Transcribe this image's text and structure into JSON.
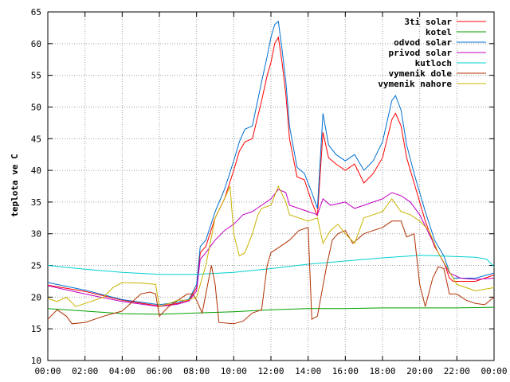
{
  "chart_data": {
    "type": "line",
    "title": "",
    "xlabel": "",
    "ylabel": "teplota ve C",
    "xlim": [
      0,
      24
    ],
    "ylim": [
      10,
      65
    ],
    "x_ticks": [
      "00:00",
      "02:00",
      "04:00",
      "06:00",
      "08:00",
      "10:00",
      "12:00",
      "14:00",
      "16:00",
      "18:00",
      "20:00",
      "22:00",
      "00:00"
    ],
    "y_ticks": [
      10,
      15,
      20,
      25,
      30,
      35,
      40,
      45,
      50,
      55,
      60,
      65
    ],
    "grid": true,
    "legend_position": "top-right",
    "series": [
      {
        "name": "3ti solar",
        "color": "#ff0000",
        "points": [
          [
            0,
            21.9
          ],
          [
            2,
            20.9
          ],
          [
            4,
            19.5
          ],
          [
            6,
            18.6
          ],
          [
            7,
            19.0
          ],
          [
            7.6,
            19.5
          ],
          [
            8.0,
            21.5
          ],
          [
            8.2,
            27.0
          ],
          [
            8.5,
            28.0
          ],
          [
            9.0,
            32.5
          ],
          [
            9.5,
            35.5
          ],
          [
            10,
            40.0
          ],
          [
            10.3,
            43.0
          ],
          [
            10.6,
            44.5
          ],
          [
            11.0,
            45.0
          ],
          [
            11.5,
            51.0
          ],
          [
            11.8,
            55.0
          ],
          [
            12.0,
            57.0
          ],
          [
            12.2,
            60.0
          ],
          [
            12.4,
            61.0
          ],
          [
            12.6,
            57.0
          ],
          [
            12.8,
            52.0
          ],
          [
            13.0,
            45.0
          ],
          [
            13.4,
            39.0
          ],
          [
            13.8,
            38.5
          ],
          [
            14.2,
            35.0
          ],
          [
            14.5,
            32.8
          ],
          [
            14.8,
            46.0
          ],
          [
            15.1,
            42.0
          ],
          [
            15.5,
            41.0
          ],
          [
            16.0,
            40.0
          ],
          [
            16.5,
            41.0
          ],
          [
            17.0,
            38.0
          ],
          [
            17.5,
            39.5
          ],
          [
            18.0,
            42.0
          ],
          [
            18.5,
            48.0
          ],
          [
            18.7,
            49.0
          ],
          [
            19.0,
            47.0
          ],
          [
            19.3,
            42.0
          ],
          [
            19.7,
            38.0
          ],
          [
            20.3,
            32.0
          ],
          [
            20.8,
            28.0
          ],
          [
            21.3,
            25.5
          ],
          [
            21.6,
            23.0
          ],
          [
            21.8,
            22.5
          ],
          [
            22.2,
            22.5
          ],
          [
            23,
            22.5
          ],
          [
            24,
            23.5
          ]
        ]
      },
      {
        "name": "kotel",
        "color": "#00a000",
        "points": [
          [
            0,
            18.2
          ],
          [
            2,
            17.8
          ],
          [
            4,
            17.4
          ],
          [
            6,
            17.3
          ],
          [
            8,
            17.5
          ],
          [
            10,
            17.7
          ],
          [
            12,
            18.0
          ],
          [
            14,
            18.2
          ],
          [
            16,
            18.2
          ],
          [
            18,
            18.3
          ],
          [
            20,
            18.3
          ],
          [
            22,
            18.3
          ],
          [
            24,
            18.4
          ]
        ]
      },
      {
        "name": "odvod solar",
        "color": "#0070d0",
        "points": [
          [
            0,
            22.3
          ],
          [
            2,
            21.1
          ],
          [
            4,
            19.6
          ],
          [
            6,
            18.8
          ],
          [
            7,
            19.2
          ],
          [
            7.6,
            19.7
          ],
          [
            8.0,
            22.0
          ],
          [
            8.2,
            28.0
          ],
          [
            8.5,
            29.0
          ],
          [
            9.0,
            33.5
          ],
          [
            9.5,
            37.0
          ],
          [
            10,
            41.5
          ],
          [
            10.3,
            44.5
          ],
          [
            10.6,
            46.5
          ],
          [
            11.0,
            47.0
          ],
          [
            11.5,
            54.0
          ],
          [
            11.8,
            58.0
          ],
          [
            12.0,
            61.0
          ],
          [
            12.2,
            63.0
          ],
          [
            12.4,
            63.5
          ],
          [
            12.6,
            59.0
          ],
          [
            12.8,
            54.0
          ],
          [
            13.0,
            47.0
          ],
          [
            13.4,
            40.5
          ],
          [
            13.8,
            39.5
          ],
          [
            14.2,
            36.5
          ],
          [
            14.5,
            34.0
          ],
          [
            14.8,
            49.0
          ],
          [
            15.1,
            44.0
          ],
          [
            15.5,
            42.5
          ],
          [
            16.0,
            41.5
          ],
          [
            16.5,
            42.5
          ],
          [
            17.0,
            40.0
          ],
          [
            17.5,
            41.5
          ],
          [
            18.0,
            44.5
          ],
          [
            18.5,
            51.0
          ],
          [
            18.7,
            51.8
          ],
          [
            19.0,
            49.5
          ],
          [
            19.3,
            44.0
          ],
          [
            19.7,
            39.5
          ],
          [
            20.3,
            33.5
          ],
          [
            20.8,
            29.0
          ],
          [
            21.3,
            26.5
          ],
          [
            21.6,
            24.0
          ],
          [
            21.8,
            23.0
          ],
          [
            22.2,
            23.0
          ],
          [
            23,
            23.0
          ],
          [
            24,
            23.8
          ]
        ]
      },
      {
        "name": "privod solar",
        "color": "#c000c0",
        "points": [
          [
            0,
            21.8
          ],
          [
            2,
            20.5
          ],
          [
            4,
            19.3
          ],
          [
            6,
            18.5
          ],
          [
            7,
            18.9
          ],
          [
            7.6,
            19.4
          ],
          [
            8.0,
            21.0
          ],
          [
            8.2,
            26.0
          ],
          [
            8.5,
            27.0
          ],
          [
            9.0,
            29.0
          ],
          [
            9.5,
            30.5
          ],
          [
            10,
            31.5
          ],
          [
            10.5,
            33.0
          ],
          [
            11.0,
            33.5
          ],
          [
            11.5,
            34.5
          ],
          [
            12.0,
            35.5
          ],
          [
            12.4,
            37.0
          ],
          [
            12.8,
            36.5
          ],
          [
            13.0,
            34.5
          ],
          [
            13.5,
            34.0
          ],
          [
            14.0,
            33.5
          ],
          [
            14.5,
            33.0
          ],
          [
            14.8,
            35.5
          ],
          [
            15.2,
            34.5
          ],
          [
            16.0,
            35.0
          ],
          [
            16.5,
            34.0
          ],
          [
            17.0,
            34.5
          ],
          [
            17.5,
            35.0
          ],
          [
            18.0,
            35.5
          ],
          [
            18.5,
            36.5
          ],
          [
            19.0,
            36.0
          ],
          [
            19.5,
            35.0
          ],
          [
            20.0,
            33.0
          ],
          [
            20.5,
            30.0
          ],
          [
            21.0,
            27.0
          ],
          [
            21.6,
            23.8
          ],
          [
            22.2,
            23.0
          ],
          [
            23,
            22.8
          ],
          [
            24,
            23.0
          ]
        ]
      },
      {
        "name": "kutloch",
        "color": "#00d0d0",
        "points": [
          [
            0,
            25.0
          ],
          [
            2,
            24.4
          ],
          [
            4,
            23.9
          ],
          [
            6,
            23.6
          ],
          [
            8,
            23.6
          ],
          [
            10,
            23.9
          ],
          [
            12,
            24.5
          ],
          [
            14,
            25.2
          ],
          [
            16,
            25.7
          ],
          [
            18,
            26.2
          ],
          [
            20,
            26.6
          ],
          [
            22,
            26.4
          ],
          [
            23,
            26.3
          ],
          [
            23.6,
            26.0
          ],
          [
            24,
            24.8
          ]
        ]
      },
      {
        "name": "vymenik dole",
        "color": "#b03000",
        "points": [
          [
            0,
            16.5
          ],
          [
            0.5,
            18.0
          ],
          [
            1.0,
            17.0
          ],
          [
            1.3,
            15.8
          ],
          [
            2,
            16.0
          ],
          [
            3,
            17.0
          ],
          [
            4,
            17.8
          ],
          [
            5,
            20.5
          ],
          [
            5.5,
            20.8
          ],
          [
            5.8,
            20.5
          ],
          [
            6.0,
            17.0
          ],
          [
            6.5,
            18.5
          ],
          [
            7.0,
            19.5
          ],
          [
            7.5,
            20.5
          ],
          [
            7.8,
            20.5
          ],
          [
            8.0,
            19.5
          ],
          [
            8.3,
            17.5
          ],
          [
            8.8,
            25.0
          ],
          [
            9.0,
            22.0
          ],
          [
            9.2,
            16.0
          ],
          [
            10,
            15.8
          ],
          [
            10.5,
            16.2
          ],
          [
            11.0,
            17.5
          ],
          [
            11.5,
            18.0
          ],
          [
            11.8,
            25.0
          ],
          [
            12.0,
            27.0
          ],
          [
            12.5,
            28.0
          ],
          [
            13.0,
            29.0
          ],
          [
            13.5,
            30.5
          ],
          [
            14.0,
            31.0
          ],
          [
            14.2,
            16.5
          ],
          [
            14.5,
            17.0
          ],
          [
            15.0,
            25.0
          ],
          [
            15.3,
            29.0
          ],
          [
            15.6,
            30.0
          ],
          [
            16.0,
            30.5
          ],
          [
            16.4,
            28.5
          ],
          [
            17.0,
            30.0
          ],
          [
            17.5,
            30.5
          ],
          [
            18.0,
            31.0
          ],
          [
            18.5,
            32.0
          ],
          [
            19.0,
            32.0
          ],
          [
            19.3,
            29.5
          ],
          [
            19.7,
            30.0
          ],
          [
            20.0,
            22.0
          ],
          [
            20.3,
            18.5
          ],
          [
            20.7,
            23.0
          ],
          [
            21.0,
            24.8
          ],
          [
            21.3,
            24.5
          ],
          [
            21.6,
            20.5
          ],
          [
            22.0,
            20.5
          ],
          [
            22.5,
            19.5
          ],
          [
            23.0,
            19.0
          ],
          [
            23.5,
            18.8
          ],
          [
            24,
            20.0
          ]
        ]
      },
      {
        "name": "vymenik nahore",
        "color": "#c8b400",
        "points": [
          [
            0,
            19.8
          ],
          [
            0.5,
            19.3
          ],
          [
            1.0,
            20.0
          ],
          [
            1.5,
            18.5
          ],
          [
            2,
            19.0
          ],
          [
            3,
            20.0
          ],
          [
            3.5,
            21.5
          ],
          [
            4.0,
            22.3
          ],
          [
            5,
            22.2
          ],
          [
            5.8,
            22.0
          ],
          [
            6.0,
            18.5
          ],
          [
            6.5,
            19.0
          ],
          [
            7.0,
            19.5
          ],
          [
            7.5,
            19.5
          ],
          [
            8.0,
            20.0
          ],
          [
            8.5,
            25.0
          ],
          [
            9.0,
            32.5
          ],
          [
            9.5,
            35.5
          ],
          [
            9.8,
            37.5
          ],
          [
            10.0,
            30.0
          ],
          [
            10.3,
            26.5
          ],
          [
            10.6,
            27.0
          ],
          [
            11.0,
            30.0
          ],
          [
            11.3,
            33.0
          ],
          [
            11.5,
            34.0
          ],
          [
            12.0,
            34.5
          ],
          [
            12.4,
            37.5
          ],
          [
            12.8,
            35.0
          ],
          [
            13.0,
            33.0
          ],
          [
            13.5,
            32.5
          ],
          [
            14.0,
            32.0
          ],
          [
            14.5,
            32.5
          ],
          [
            14.8,
            28.5
          ],
          [
            15.2,
            30.5
          ],
          [
            15.6,
            31.5
          ],
          [
            16.0,
            30.0
          ],
          [
            16.5,
            28.5
          ],
          [
            17.0,
            32.5
          ],
          [
            17.5,
            33.0
          ],
          [
            18.0,
            33.5
          ],
          [
            18.5,
            35.5
          ],
          [
            19.0,
            33.5
          ],
          [
            19.5,
            33.0
          ],
          [
            20.0,
            32.0
          ],
          [
            20.5,
            30.5
          ],
          [
            21.0,
            27.0
          ],
          [
            21.5,
            24.5
          ],
          [
            22.0,
            22.0
          ],
          [
            22.5,
            21.5
          ],
          [
            23.0,
            21.0
          ],
          [
            24,
            21.5
          ]
        ]
      }
    ]
  }
}
